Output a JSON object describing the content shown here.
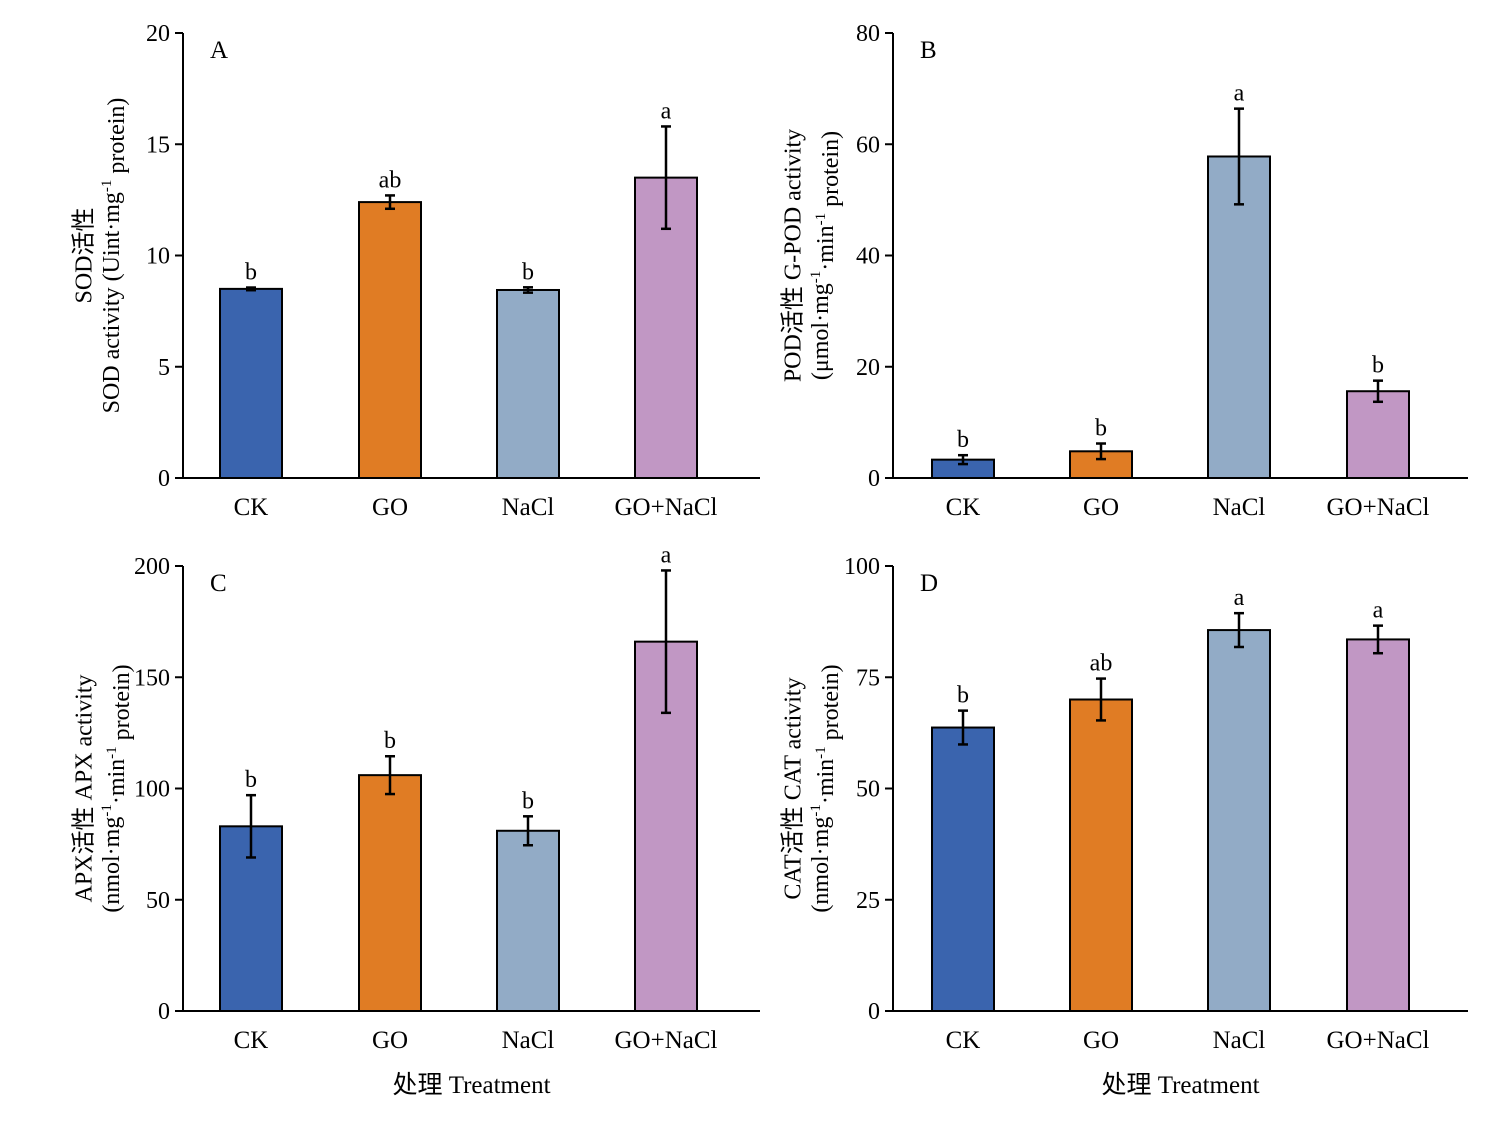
{
  "colors": {
    "CK": "#3a64ae",
    "GO": "#e07c24",
    "NaCl": "#92abc6",
    "GO+NaCl": "#c197c4"
  },
  "chart_data": [
    {
      "type": "bar",
      "panel": "A",
      "categories": [
        "CK",
        "GO",
        "NaCl",
        "GO+NaCl"
      ],
      "values": [
        8.5,
        12.4,
        8.45,
        13.5
      ],
      "errors": [
        0.06,
        0.3,
        0.12,
        2.3
      ],
      "significance": [
        "b",
        "ab",
        "b",
        "a"
      ],
      "ylabel_lines": [
        "SOD活性",
        "SOD activity (Uint·mg",
        "-1",
        " protein)"
      ],
      "ylim": [
        0,
        20
      ],
      "yticks": [
        0,
        5,
        10,
        15,
        20
      ],
      "xlabel": ""
    },
    {
      "type": "bar",
      "panel": "B",
      "categories": [
        "CK",
        "GO",
        "NaCl",
        "GO+NaCl"
      ],
      "values": [
        3.3,
        4.8,
        57.8,
        15.6
      ],
      "errors": [
        0.8,
        1.4,
        8.6,
        1.9
      ],
      "significance": [
        "b",
        "b",
        "a",
        "b"
      ],
      "ylabel_lines": [
        "POD活性 G-POD activity",
        "(μmol·mg",
        "-1",
        "·min",
        "-1",
        " protein)"
      ],
      "ylim": [
        0,
        80
      ],
      "yticks": [
        0,
        20,
        40,
        60,
        80
      ],
      "xlabel": ""
    },
    {
      "type": "bar",
      "panel": "C",
      "categories": [
        "CK",
        "GO",
        "NaCl",
        "GO+NaCl"
      ],
      "values": [
        83,
        106,
        81,
        166
      ],
      "errors": [
        14,
        8.5,
        6.5,
        32
      ],
      "significance": [
        "b",
        "b",
        "b",
        "a"
      ],
      "ylabel_lines": [
        "APX活性 APX activity",
        "(nmol·mg",
        "-1",
        "·min",
        "-1",
        " protein)"
      ],
      "ylim": [
        0,
        200
      ],
      "yticks": [
        0,
        50,
        100,
        150,
        200
      ],
      "xlabel": "处理 Treatment"
    },
    {
      "type": "bar",
      "panel": "D",
      "categories": [
        "CK",
        "GO",
        "NaCl",
        "GO+NaCl"
      ],
      "values": [
        63.7,
        70,
        85.6,
        83.5
      ],
      "errors": [
        3.8,
        4.7,
        3.8,
        3.1
      ],
      "significance": [
        "b",
        "ab",
        "a",
        "a"
      ],
      "ylabel_lines": [
        "CAT活性 CAT activity",
        "(nmol·mg",
        "-1",
        "·min",
        "-1",
        " protein)"
      ],
      "ylim": [
        0,
        100
      ],
      "yticks": [
        0,
        25,
        50,
        75,
        100
      ],
      "xlabel": "处理 Treatment"
    }
  ]
}
